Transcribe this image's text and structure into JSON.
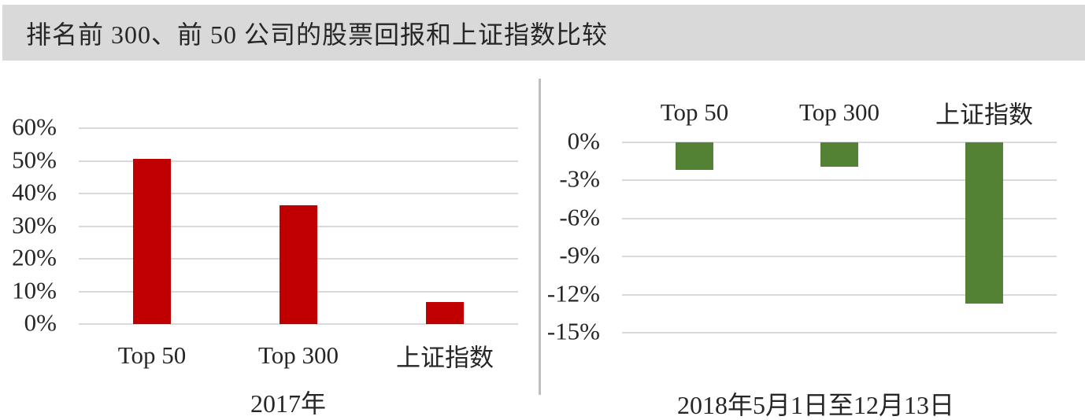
{
  "header": {
    "title": "排名前 300、前 50 公司的股票回报和上证指数比较"
  },
  "colors": {
    "header_bg": "#d9d9d9",
    "gridline": "#d9d9d9",
    "divider": "#bfbfbf",
    "text": "#262626",
    "left_bar": "#c00000",
    "right_bar": "#548235"
  },
  "chart_data": [
    {
      "type": "bar",
      "title": "2017年",
      "title_position": "bottom",
      "categories": [
        "Top 50",
        "Top 300",
        "上证指数"
      ],
      "values": [
        50.5,
        36.5,
        6.8
      ],
      "unit": "%",
      "bar_color": "#c00000",
      "ylim": [
        0,
        60
      ],
      "ytick_values": [
        60,
        50,
        40,
        30,
        20,
        10,
        0
      ],
      "ytick_labels": [
        "60%",
        "50%",
        "40%",
        "30%",
        "20%",
        "10%",
        "0%"
      ],
      "category_label_position": "below-axis",
      "grid": true,
      "legend_position": "none"
    },
    {
      "type": "bar",
      "title": "2018年5月1日至12月13日",
      "title_position": "bottom",
      "categories": [
        "Top 50",
        "Top 300",
        "上证指数"
      ],
      "values": [
        -2.2,
        -1.9,
        -12.7
      ],
      "unit": "%",
      "bar_color": "#548235",
      "ylim": [
        0,
        -15
      ],
      "ytick_values": [
        0,
        -3,
        -6,
        -9,
        -12,
        -15
      ],
      "ytick_labels": [
        "0%",
        "-3%",
        "-6%",
        "-9%",
        "-12%",
        "-15%"
      ],
      "category_label_position": "above-plot",
      "grid": true,
      "legend_position": "none"
    }
  ]
}
